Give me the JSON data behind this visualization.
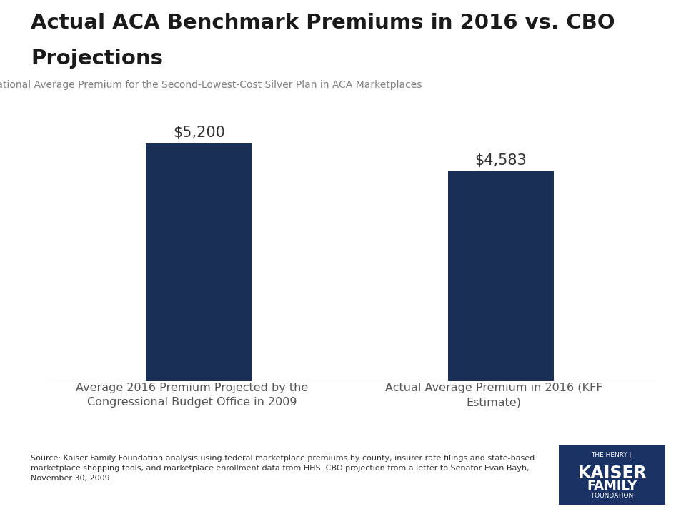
{
  "title_line1": "Actual ACA Benchmark Premiums in 2016 vs. CBO",
  "title_line2": "Projections",
  "subtitle": "National Average Premium for the Second-Lowest-Cost Silver Plan in ACA Marketplaces",
  "categories": [
    "Average 2016 Premium Projected by the\nCongressional Budget Office in 2009",
    "Actual Average Premium in 2016 (KFF\nEstimate)"
  ],
  "values": [
    5200,
    4583
  ],
  "value_labels": [
    "$5,200",
    "$4,583"
  ],
  "bar_color": "#1a2f56",
  "ylim": [
    0,
    6200
  ],
  "bar_positions": [
    1,
    3
  ],
  "bar_width": 0.7,
  "xlim": [
    0,
    4
  ],
  "source_text": "Source: Kaiser Family Foundation analysis using federal marketplace premiums by county, insurer rate filings and state-based\nmarketplace shopping tools, and marketplace enrollment data from HHS. CBO projection from a letter to Senator Evan Bayh,\nNovember 30, 2009.",
  "kff_box_color": "#1a3264",
  "kff_text_line1": "THE HENRY J.",
  "kff_text_line2": "KAISER",
  "kff_text_line3": "FAMILY",
  "kff_text_line4": "FOUNDATION",
  "title_color": "#1a1a1a",
  "subtitle_color": "#808080",
  "source_color": "#333333",
  "xlabel_color": "#555555",
  "value_label_color": "#333333",
  "background_color": "#ffffff"
}
